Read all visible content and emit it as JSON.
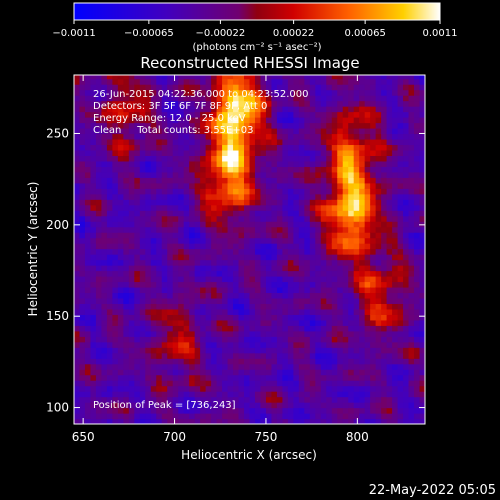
{
  "chart_data": {
    "type": "heatmap",
    "title": "Reconstructed RHESSI Image",
    "xlabel": "Heliocentric X (arcsec)",
    "ylabel": "Heliocentric Y (arcsec)",
    "xlim": [
      645,
      837
    ],
    "ylim": [
      91,
      282
    ],
    "x_ticks": [
      650,
      700,
      750,
      800
    ],
    "y_ticks": [
      100,
      150,
      200,
      250
    ],
    "x_tick_labels": [
      "650",
      "700",
      "750",
      "800"
    ],
    "y_tick_labels": [
      "100",
      "150",
      "200",
      "250"
    ],
    "colorbar": {
      "range": [
        -0.0011,
        0.0011
      ],
      "colormap": "blue-purple-red-yellow-white",
      "tick_values": [
        -0.0011,
        -0.00065,
        -0.00022,
        0.00022,
        0.00065,
        0.0011
      ],
      "tick_labels": [
        "−0.0011",
        "−0.00065",
        "−0.00022",
        "0.00022",
        "0.00065",
        "0.0011"
      ],
      "unit_label": "(photons cm⁻² s⁻¹ asec⁻²)"
    },
    "annotations": [
      "26-Jun-2015 04:22:36.000 to 04:23:52.000",
      "Detectors: 3F 5F 6F 7F 8F 9F, Att 0",
      "Energy Range: 12.0 - 25.0 keV",
      "Clean     Total counts: 3.55E+03"
    ],
    "peak_label": "Position of Peak = [736,243]",
    "peak": [
      736,
      243
    ],
    "sources": [
      {
        "x": 733,
        "y": 262,
        "intensity": 1.0
      },
      {
        "x": 728,
        "y": 225,
        "intensity": 0.75
      },
      {
        "x": 795,
        "y": 205,
        "intensity": 0.85
      },
      {
        "x": 795,
        "y": 240,
        "intensity": 0.55
      },
      {
        "x": 812,
        "y": 160,
        "intensity": 0.45
      },
      {
        "x": 700,
        "y": 135,
        "intensity": 0.35
      },
      {
        "x": 672,
        "y": 262,
        "intensity": 0.4
      }
    ],
    "grid": false
  },
  "footer": {
    "timestamp": "22-May-2022 05:05"
  },
  "colors": {
    "background": "#000000",
    "axis": "#ffffff"
  }
}
